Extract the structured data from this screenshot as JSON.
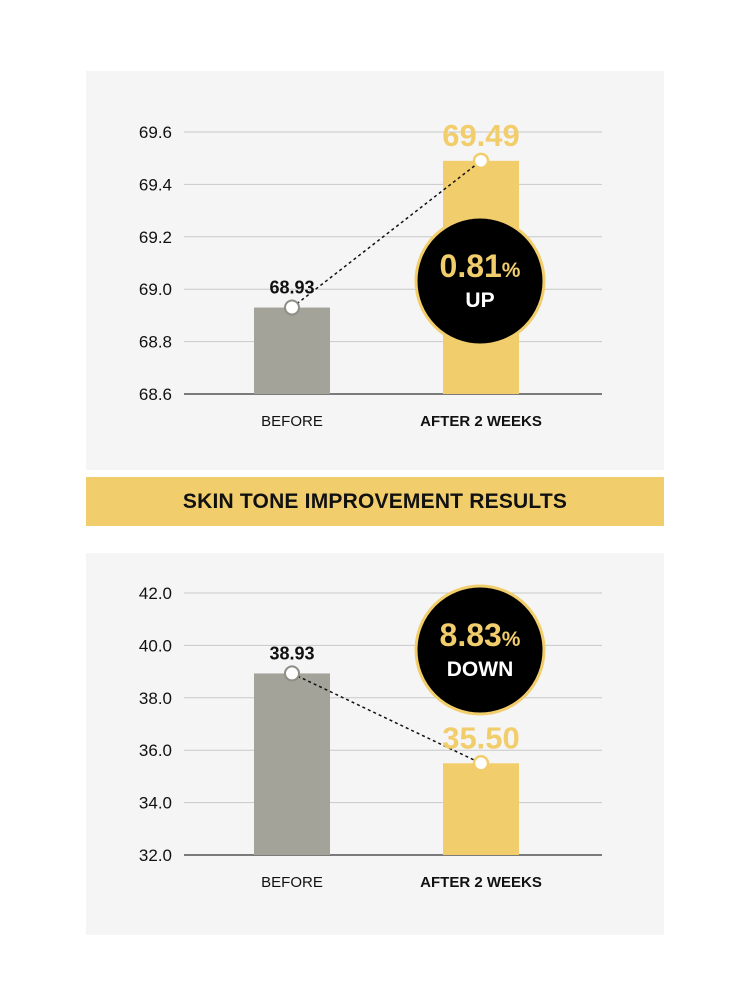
{
  "banner": {
    "title": "SKIN TONE IMPROVEMENT RESULTS"
  },
  "colors": {
    "before_bar": "#a3a39a",
    "after_bar": "#f1cd6b",
    "badge_bg": "#000000",
    "badge_ring": "#f1cd6b",
    "highlight": "#f1cd6b",
    "text": "#111111",
    "grid": "#c9c9c9",
    "axis": "#333333"
  },
  "chart_data": [
    {
      "type": "bar",
      "categories": [
        "BEFORE",
        "AFTER 2 WEEKS"
      ],
      "values": [
        68.93,
        69.49
      ],
      "value_labels": [
        "68.93",
        "69.49"
      ],
      "ylim": [
        68.6,
        69.6
      ],
      "yticks": [
        "69.6",
        "69.4",
        "69.2",
        "69.0",
        "68.8",
        "68.6"
      ],
      "ytick_values": [
        69.6,
        69.4,
        69.2,
        69.0,
        68.8,
        68.6
      ],
      "grid": true,
      "connector": "dotted",
      "badge": {
        "value": "0.81",
        "unit": "%",
        "direction": "UP"
      },
      "legend": "none"
    },
    {
      "type": "bar",
      "categories": [
        "BEFORE",
        "AFTER 2 WEEKS"
      ],
      "values": [
        38.93,
        35.5
      ],
      "value_labels": [
        "38.93",
        "35.50"
      ],
      "ylim": [
        32.0,
        42.0
      ],
      "yticks": [
        "42.0",
        "40.0",
        "38.0",
        "36.0",
        "34.0",
        "32.0"
      ],
      "ytick_values": [
        42.0,
        40.0,
        38.0,
        36.0,
        34.0,
        32.0
      ],
      "grid": true,
      "connector": "dotted",
      "badge": {
        "value": "8.83",
        "unit": "%",
        "direction": "DOWN"
      },
      "legend": "none"
    }
  ]
}
